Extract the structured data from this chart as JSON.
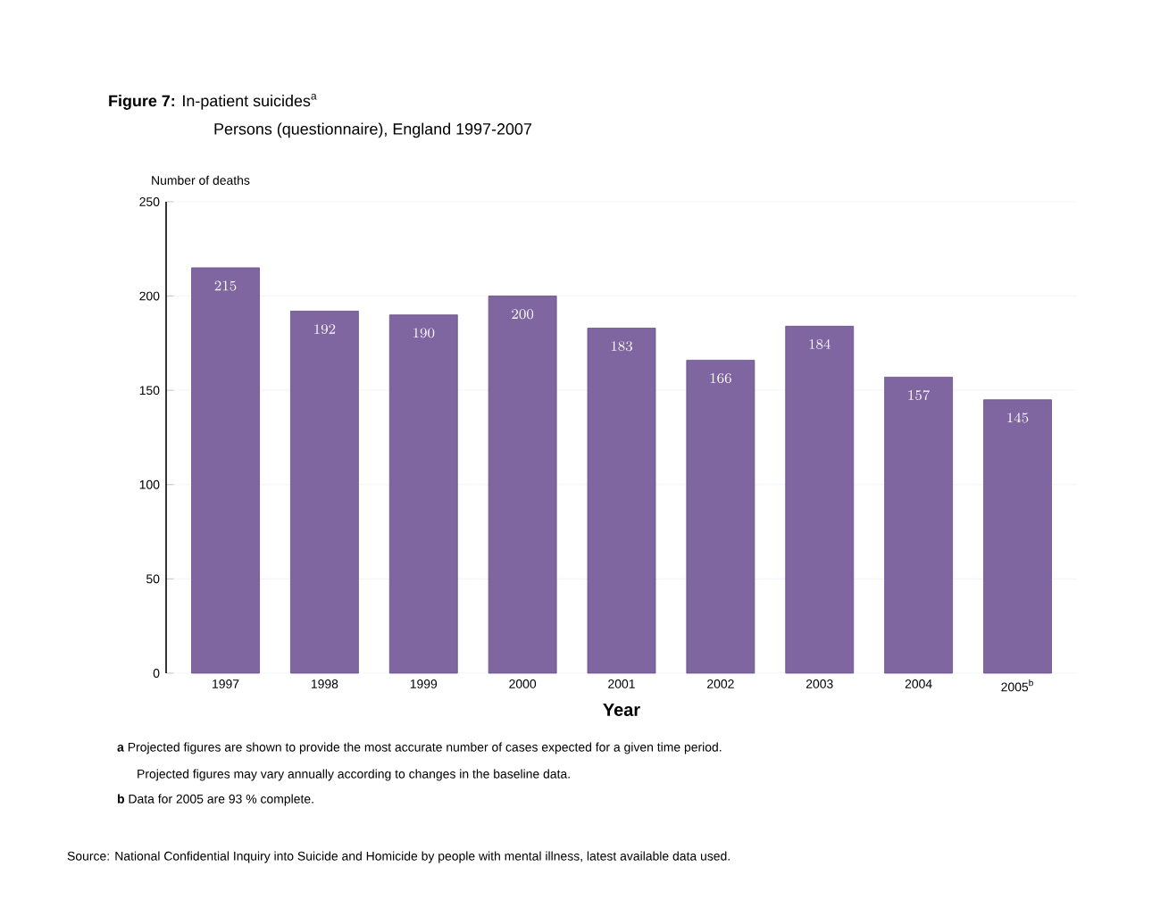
{
  "chart_data": {
    "type": "bar",
    "title": "**Figure 7:** In-patient suicides$^{a}$",
    "subtitle": "Persons (questionnaire), England 1997-2007",
    "xlabel": "Year",
    "ylabel": "Number of deaths",
    "categories": [
      "1997",
      "1998",
      "1999",
      "2000",
      "2001",
      "2002",
      "2003",
      "2004",
      "2005$^{b}$"
    ],
    "values": [
      215,
      192,
      190,
      200,
      183,
      166,
      184,
      157,
      145
    ],
    "color": "#7f66a0",
    "ylim": [
      0,
      250
    ],
    "yticks": [
      0,
      50,
      100,
      150,
      200,
      250
    ],
    "grid": "y",
    "data_labels": true,
    "annotations": [
      "**a** Projected figures are shown to provide the most accurate number of cases expected for a given time period.",
      "Projected figures may vary annually according to changes in the baseline data.",
      "**b** Data for 2005 are 93 % complete.",
      "Source: National Confidential Inquiry into Suicide and Homicide by people with mental illness, latest available data used."
    ]
  }
}
